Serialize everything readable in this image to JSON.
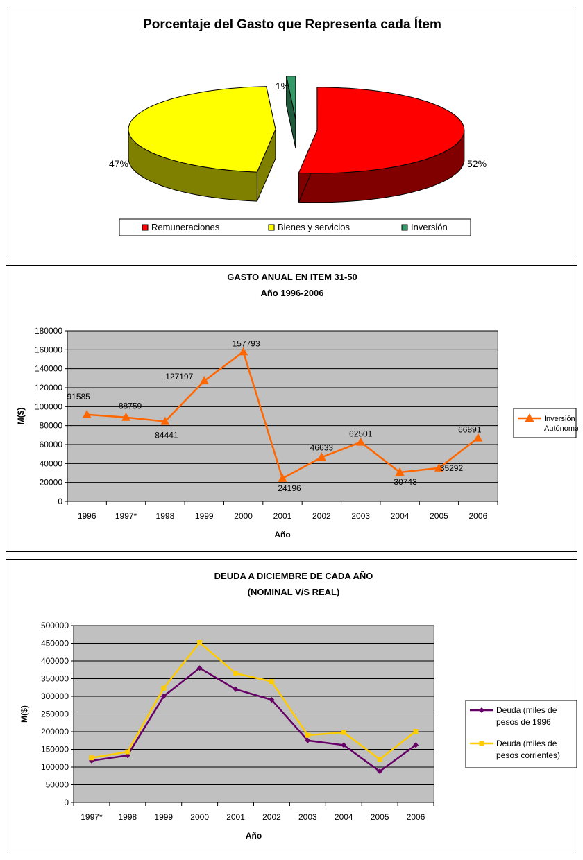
{
  "chart_data": [
    {
      "type": "pie",
      "title": "Porcentaje del Gasto que Representa cada Ítem",
      "categories": [
        "Remuneraciones",
        "Bienes y servicios",
        "Inversión"
      ],
      "values": [
        52,
        47,
        1
      ],
      "data_labels": [
        "52%",
        "47%",
        "1%"
      ],
      "colors": [
        "#ff0000",
        "#ffff00",
        "#339966"
      ],
      "side_colors": [
        "#800000",
        "#808000",
        "#1f5a3c"
      ],
      "style": "3d-exploded",
      "legend": "bottom"
    },
    {
      "type": "line",
      "title": "GASTO ANUAL EN ITEM 31-50",
      "subtitle": "Año 1996-2006",
      "xlabel": "Año",
      "ylabel": "M($)",
      "categories": [
        "1996",
        "1997*",
        "1998",
        "1999",
        "2000",
        "2001",
        "2002",
        "2003",
        "2004",
        "2005",
        "2006"
      ],
      "ylim": [
        0,
        180000
      ],
      "yticks": [
        "0",
        "20000",
        "40000",
        "60000",
        "80000",
        "100000",
        "120000",
        "140000",
        "160000",
        "180000"
      ],
      "ytick_values": [
        0,
        20000,
        40000,
        60000,
        80000,
        100000,
        120000,
        140000,
        160000,
        180000
      ],
      "grid": true,
      "plot_bg": "#c0c0c0",
      "legend": "right",
      "series": [
        {
          "name": "Inversión Autónoma",
          "name_lines": [
            "Inversión",
            "Autónoma"
          ],
          "color": "#ff6600",
          "marker": "triangle",
          "values": [
            91585,
            88759,
            84441,
            127197,
            157793,
            24196,
            46633,
            62501,
            30743,
            35292,
            66891
          ],
          "data_labels": [
            "91585",
            "88759",
            "84441",
            "127197",
            "157793",
            "24196",
            "46633",
            "62501",
            "30743",
            "35292",
            "66891"
          ]
        }
      ]
    },
    {
      "type": "line",
      "title": "DEUDA A DICIEMBRE DE CADA AÑO",
      "subtitle": "(NOMINAL V/S REAL)",
      "xlabel": "Año",
      "ylabel": "M($)",
      "categories": [
        "1997*",
        "1998",
        "1999",
        "2000",
        "2001",
        "2002",
        "2003",
        "2004",
        "2005",
        "2006"
      ],
      "ylim": [
        0,
        500000
      ],
      "yticks": [
        "0",
        "50000",
        "100000",
        "150000",
        "200000",
        "250000",
        "300000",
        "350000",
        "400000",
        "450000",
        "500000"
      ],
      "ytick_values": [
        0,
        50000,
        100000,
        150000,
        200000,
        250000,
        300000,
        350000,
        400000,
        450000,
        500000
      ],
      "grid": true,
      "plot_bg": "#c0c0c0",
      "legend": "right",
      "series": [
        {
          "name": "Deuda (miles de pesos de 1996",
          "name_lines": [
            "Deuda (miles de",
            "pesos de 1996"
          ],
          "color": "#660066",
          "marker": "diamond",
          "values": [
            118000,
            133000,
            300000,
            380000,
            320000,
            290000,
            175000,
            162000,
            88000,
            162000
          ]
        },
        {
          "name": "Deuda (miles de pesos corrientes)",
          "name_lines": [
            "Deuda (miles de",
            "pesos corrientes)"
          ],
          "color": "#ffcc00",
          "marker": "square",
          "values": [
            126000,
            143000,
            323000,
            452000,
            365000,
            342000,
            190000,
            198000,
            122000,
            201000
          ]
        }
      ]
    }
  ]
}
